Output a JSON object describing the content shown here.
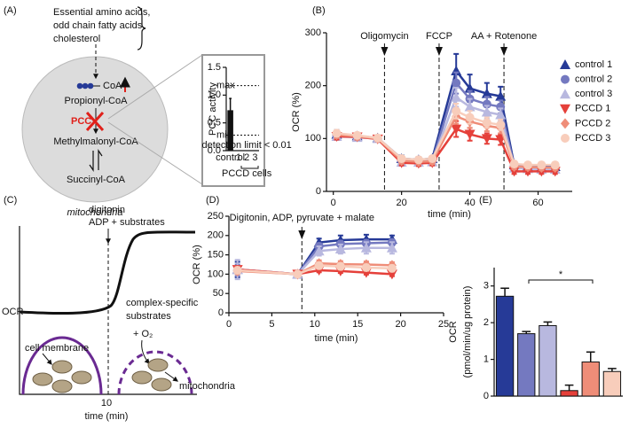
{
  "diagram_a": {
    "label": "(A)",
    "source_lines": [
      "Essential amino acids,",
      "odd chain fatty acids,",
      "cholesterol"
    ],
    "coa": "CoA",
    "propionyl": "Propionyl-CoA",
    "enzyme": "PCC",
    "methylmalonyl": "Methylmalonyl-CoA",
    "succinyl": "Succinyl-CoA",
    "organelle": "mitochondria"
  },
  "diagram_c": {
    "label": "(C)",
    "y_label": "OCR",
    "x_label": "time (min)",
    "x_tick": "10",
    "injection_lines": [
      "digitonin",
      "ADP + substrates"
    ],
    "substrate_lines": [
      "complex-specific",
      "substrates"
    ],
    "oxygen": "+ O₂",
    "membrane": "cell membrane",
    "organelle": "mitochondria"
  },
  "chart_data": [
    {
      "type": "line",
      "label": "(B)",
      "x_label": "time (min)",
      "y_label": "OCR (%)",
      "x": [
        1,
        7,
        13,
        20,
        25,
        29,
        36,
        40,
        45,
        49,
        53,
        57,
        61,
        65
      ],
      "xlim": [
        -2,
        70
      ],
      "xticks": [
        0,
        20,
        40,
        60
      ],
      "ylim": [
        0,
        300
      ],
      "yticks": [
        0,
        100,
        200,
        300
      ],
      "legend": "right",
      "annotations": [
        {
          "text": "Oligomycin",
          "x": 15
        },
        {
          "text": "FCCP",
          "x": 31
        },
        {
          "text": "AA + Rotenone",
          "x": 50
        }
      ],
      "series": [
        {
          "name": "control 1",
          "color": "#263a97",
          "marker": "triangle-up",
          "values": [
            108,
            105,
            101,
            62,
            60,
            62,
            228,
            195,
            185,
            180,
            50,
            48,
            47,
            47
          ],
          "errors": [
            8,
            5,
            4,
            6,
            5,
            5,
            32,
            26,
            20,
            18,
            6,
            5,
            5,
            5
          ]
        },
        {
          "name": "control 2",
          "color": "#7479c0",
          "marker": "circle",
          "values": [
            106,
            104,
            100,
            58,
            57,
            58,
            205,
            175,
            165,
            160,
            48,
            46,
            45,
            45
          ],
          "errors": [
            6,
            5,
            4,
            5,
            5,
            5,
            20,
            15,
            14,
            12,
            5,
            5,
            5,
            5
          ]
        },
        {
          "name": "control 3",
          "color": "#b8b8df",
          "marker": "triangle-up",
          "values": [
            104,
            102,
            100,
            55,
            55,
            56,
            178,
            160,
            150,
            145,
            44,
            43,
            42,
            42
          ],
          "errors": [
            6,
            5,
            4,
            5,
            5,
            5,
            18,
            15,
            12,
            12,
            5,
            5,
            5,
            5
          ]
        },
        {
          "name": "PCCD 1",
          "color": "#e5403a",
          "marker": "triangle-down",
          "values": [
            104,
            103,
            99,
            54,
            53,
            54,
            118,
            108,
            100,
            98,
            38,
            38,
            38,
            38
          ],
          "errors": [
            6,
            5,
            4,
            5,
            5,
            5,
            15,
            12,
            10,
            10,
            5,
            5,
            5,
            5
          ]
        },
        {
          "name": "PCCD 2",
          "color": "#ef8d78",
          "marker": "diamond",
          "values": [
            107,
            104,
            100,
            58,
            56,
            57,
            142,
            132,
            124,
            120,
            47,
            46,
            45,
            45
          ],
          "errors": [
            6,
            5,
            4,
            5,
            5,
            5,
            14,
            12,
            10,
            10,
            5,
            5,
            5,
            5
          ]
        },
        {
          "name": "PCCD 3",
          "color": "#f8cdbb",
          "marker": "circle",
          "values": [
            110,
            106,
            101,
            62,
            60,
            62,
            152,
            140,
            130,
            126,
            52,
            50,
            50,
            50
          ],
          "errors": [
            6,
            5,
            4,
            5,
            5,
            5,
            14,
            12,
            10,
            10,
            5,
            5,
            5,
            5
          ]
        }
      ]
    },
    {
      "type": "line",
      "label": "(D)",
      "x_label": "time (min)",
      "y_label": "OCR (%)",
      "x": [
        1,
        8,
        10.5,
        13,
        16,
        19
      ],
      "xlim": [
        0,
        25
      ],
      "xticks": [
        0,
        5,
        10,
        15,
        20,
        25
      ],
      "ylim": [
        0,
        250
      ],
      "yticks": [
        0,
        50,
        100,
        150,
        200,
        250
      ],
      "annotations": [
        {
          "text": "Digitonin, ADP, pyruvate + malate",
          "x": 8.5
        }
      ],
      "series": [
        {
          "color": "#263a97",
          "marker": "triangle-up",
          "values": [
            112,
            100,
            182,
            188,
            190,
            190
          ],
          "errors": [
            20,
            3,
            10,
            12,
            12,
            10
          ]
        },
        {
          "color": "#7479c0",
          "marker": "circle",
          "values": [
            110,
            100,
            172,
            178,
            180,
            182
          ],
          "errors": [
            15,
            3,
            8,
            8,
            8,
            8
          ]
        },
        {
          "color": "#b8b8df",
          "marker": "triangle-up",
          "values": [
            112,
            100,
            160,
            165,
            168,
            168
          ],
          "errors": [
            25,
            3,
            12,
            12,
            15,
            15
          ]
        },
        {
          "color": "#e5403a",
          "marker": "triangle-down",
          "values": [
            112,
            100,
            110,
            108,
            104,
            100
          ],
          "errors": [
            8,
            3,
            5,
            5,
            5,
            5
          ]
        },
        {
          "color": "#ef8d78",
          "marker": "diamond",
          "values": [
            108,
            100,
            128,
            126,
            125,
            123
          ],
          "errors": [
            8,
            3,
            8,
            8,
            8,
            8
          ]
        },
        {
          "color": "#f8cdbb",
          "marker": "circle",
          "values": [
            110,
            100,
            122,
            120,
            117,
            115
          ],
          "errors": [
            8,
            3,
            8,
            8,
            8,
            8
          ]
        }
      ]
    },
    {
      "type": "bar",
      "label": "(E)",
      "y_label": [
        "OCR",
        "(pmol/min/ug protein)"
      ],
      "ylim": [
        0,
        3.5
      ],
      "yticks": [
        0,
        1,
        2,
        3
      ],
      "values": [
        2.72,
        1.7,
        1.92,
        0.15,
        0.93,
        0.67
      ],
      "errors": [
        0.22,
        0.06,
        0.1,
        0.15,
        0.27,
        0.08
      ],
      "colors": [
        "#263a97",
        "#7479c0",
        "#b8b8df",
        "#e5403a",
        "#ef8d78",
        "#f8cdbb"
      ],
      "significance_label": "*"
    },
    {
      "type": "bar",
      "y_label": "PCC activity",
      "categories": [
        "control",
        "1",
        "2",
        "3"
      ],
      "values": [
        0.72,
        null,
        null,
        null
      ],
      "errors": [
        0.22,
        null,
        null,
        null
      ],
      "color": "#111111",
      "ylim": [
        0,
        1.5
      ],
      "yticks": [
        {
          "value": 0,
          "label": "0.0"
        },
        {
          "value": 0.5,
          "label": "0.5"
        },
        {
          "value": 1,
          "label": "1.0"
        },
        {
          "value": 1.5,
          "label": "1.5"
        }
      ],
      "reference_lines": [
        {
          "label": "max",
          "value": 1.17
        },
        {
          "label": "min",
          "value": 0.28
        }
      ],
      "group_label": "PCCD cells",
      "note": "detection limit < 0.01"
    }
  ]
}
